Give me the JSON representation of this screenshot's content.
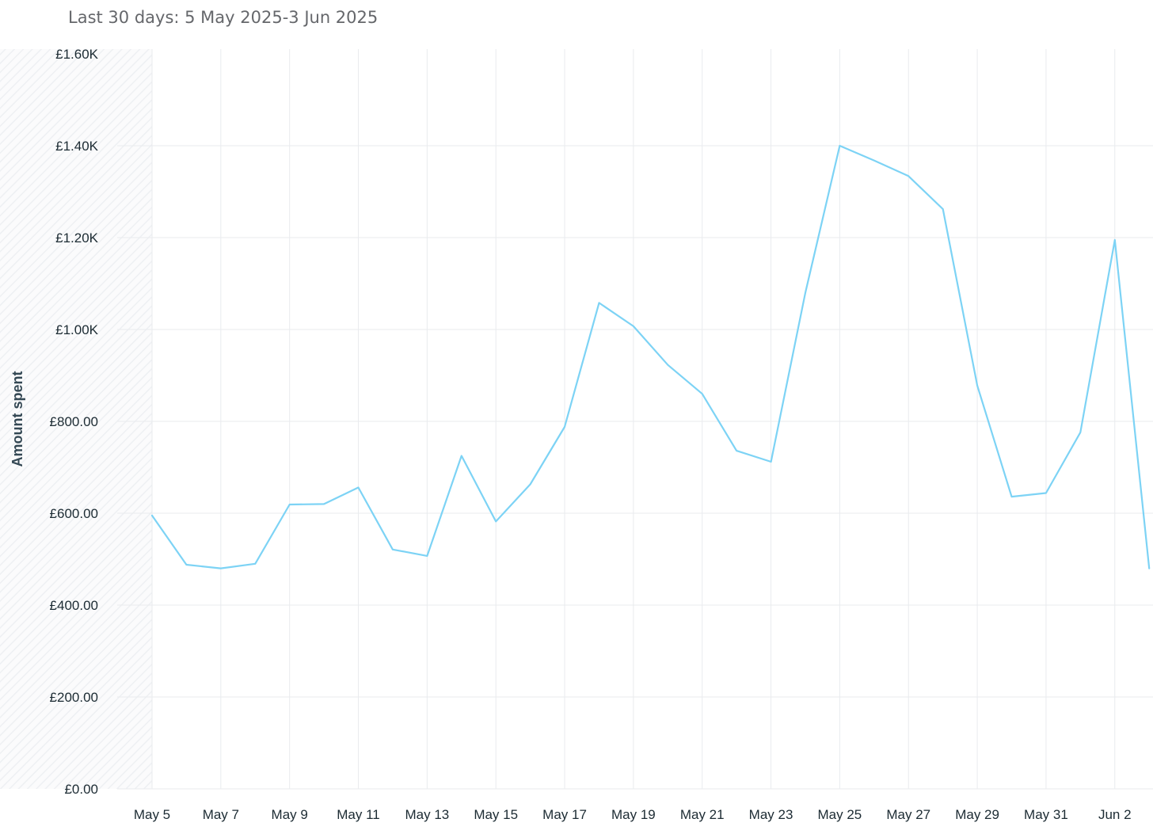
{
  "header": {
    "date_range": "Last 30 days: 5 May 2025-3 Jun 2025"
  },
  "chart_data": {
    "type": "line",
    "title": "",
    "xlabel": "",
    "ylabel": "Amount spent",
    "x": [
      "May 5",
      "May 6",
      "May 7",
      "May 8",
      "May 9",
      "May 10",
      "May 11",
      "May 12",
      "May 13",
      "May 14",
      "May 15",
      "May 16",
      "May 17",
      "May 18",
      "May 19",
      "May 20",
      "May 21",
      "May 22",
      "May 23",
      "May 24",
      "May 25",
      "May 26",
      "May 27",
      "May 28",
      "May 29",
      "May 30",
      "May 31",
      "Jun 1",
      "Jun 2",
      "Jun 3"
    ],
    "x_tick_labels": [
      "May 5",
      "May 7",
      "May 9",
      "May 11",
      "May 13",
      "May 15",
      "May 17",
      "May 19",
      "May 21",
      "May 23",
      "May 25",
      "May 27",
      "May 29",
      "May 31",
      "Jun 2"
    ],
    "series": [
      {
        "values": [
          595,
          488,
          480,
          490,
          619,
          620,
          656,
          521,
          507,
          725,
          582,
          663,
          788,
          1058,
          1007,
          923,
          860,
          736,
          712,
          1080,
          1400,
          1368,
          1334,
          1262,
          878,
          636,
          644,
          776,
          1195,
          480
        ],
        "color": "#7dd3f5"
      }
    ],
    "y_ticks": [
      0,
      200,
      400,
      600,
      800,
      1000,
      1200,
      1400,
      1600
    ],
    "y_tick_labels": [
      "£0.00",
      "£200.00",
      "£400.00",
      "£600.00",
      "£800.00",
      "£1.00K",
      "£1.20K",
      "£1.40K",
      "£1.60K"
    ],
    "ylim": [
      0,
      1600
    ],
    "grid": true,
    "legend": "none",
    "colors": {
      "line": "#7dd3f5",
      "grid": "#e9ebee",
      "tick_text": "#1c2b33",
      "axis_title": "#344854",
      "shaded_region": "#f5f6f7"
    }
  }
}
